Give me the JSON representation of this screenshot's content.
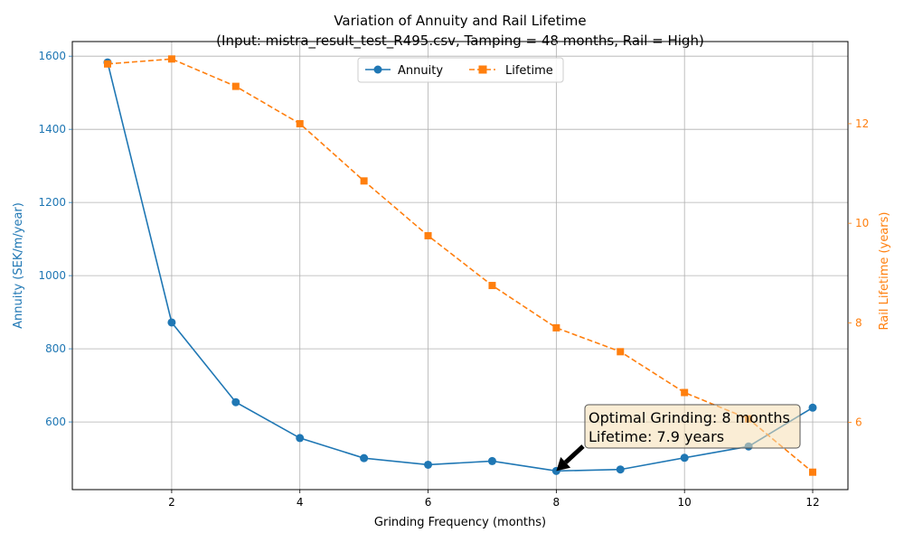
{
  "chart_data": {
    "type": "line",
    "title": "Variation of Annuity and Rail Lifetime",
    "subtitle": "(Input: mistra_result_test_R495.csv, Tamping = 48 months, Rail = High)",
    "xlabel": "Grinding Frequency (months)",
    "ylabel_left": "Annuity (SEK/m/year)",
    "ylabel_right": "Rail Lifetime (years)",
    "x": [
      1,
      2,
      3,
      4,
      5,
      6,
      7,
      8,
      9,
      10,
      11,
      12
    ],
    "xlim": [
      0.45,
      12.55
    ],
    "xticks": [
      2,
      4,
      6,
      8,
      10,
      12
    ],
    "ylim_left": [
      415,
      1640
    ],
    "yticks_left": [
      600,
      800,
      1000,
      1200,
      1400,
      1600
    ],
    "ylim_right": [
      4.65,
      13.65
    ],
    "yticks_right": [
      6,
      8,
      10,
      12
    ],
    "grid": true,
    "legend_position": "top-center",
    "series": [
      {
        "name": "Annuity",
        "axis": "left",
        "color": "#1f77b4",
        "marker": "circle",
        "linestyle": "solid",
        "values": [
          1583,
          872,
          654,
          556,
          501,
          483,
          493,
          466,
          470,
          502,
          533,
          639
        ]
      },
      {
        "name": "Lifetime",
        "axis": "right",
        "color": "#ff7f0e",
        "marker": "square",
        "linestyle": "dashed",
        "values": [
          13.2,
          13.3,
          12.75,
          12.0,
          10.85,
          9.75,
          8.75,
          7.9,
          7.42,
          6.6,
          6.07,
          5.0
        ]
      }
    ],
    "annotation": {
      "line1": "Optimal Grinding: 8 months",
      "line2": "Lifetime: 7.9 years",
      "x": 8,
      "y": 466
    }
  }
}
